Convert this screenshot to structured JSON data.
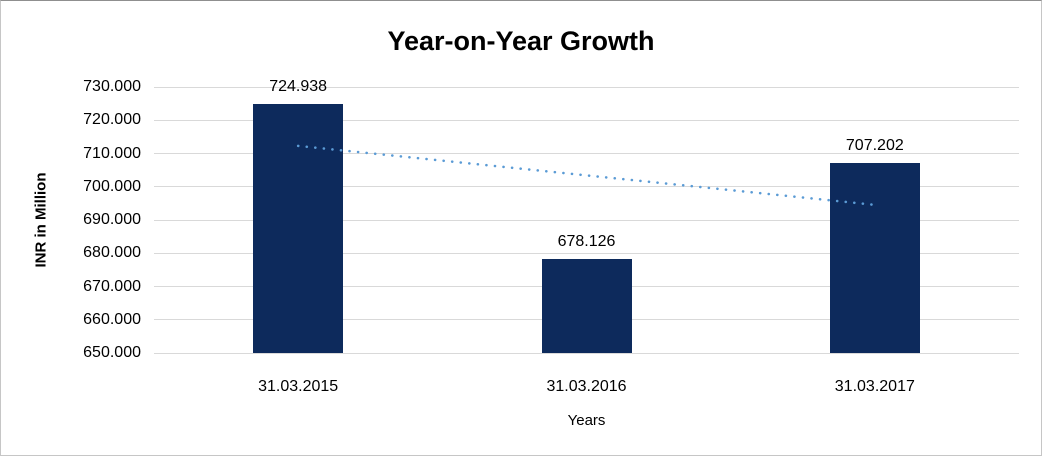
{
  "chart_data": {
    "type": "bar",
    "title": "Year-on-Year Growth",
    "xlabel": "Years",
    "ylabel": "INR in Million",
    "categories": [
      "31.03.2015",
      "31.03.2016",
      "31.03.2017"
    ],
    "values": [
      724.938,
      678.126,
      707.202
    ],
    "value_labels": [
      "724.938",
      "678.126",
      "707.202"
    ],
    "ylim": [
      650,
      730
    ],
    "yticks": [
      730,
      720,
      710,
      700,
      690,
      680,
      670,
      660,
      650
    ],
    "ytick_labels": [
      "730.000",
      "720.000",
      "710.000",
      "700.000",
      "690.000",
      "680.000",
      "670.000",
      "660.000",
      "650.000"
    ],
    "grid": "horizontal",
    "legend": "none",
    "colors": {
      "bar": "#0d2a5c",
      "gridline": "#d9d9d9",
      "trendline": "#5b9bd5",
      "text": "#000000"
    },
    "trendline": {
      "type": "linear",
      "style": "dotted",
      "start_value": 712.29,
      "end_value": 694.55
    }
  }
}
